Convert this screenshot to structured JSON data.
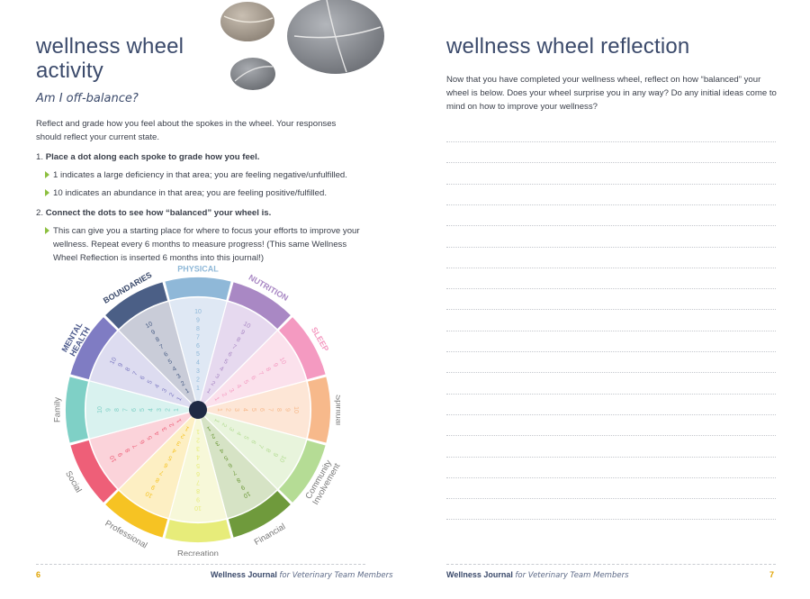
{
  "left_page": {
    "title": "wellness wheel activity",
    "subtitle": "Am I off-balance?",
    "intro": "Reflect and grade how you feel about the spokes in the wheel. Your responses should reflect your current state.",
    "step1": {
      "number": "1.",
      "heading": "Place a dot along each spoke to grade how you feel.",
      "bullets": [
        "1 indicates a large deficiency in that area; you are feeling negative/unfulfilled.",
        "10 indicates an abundance in that area; you are feeling positive/fulfilled."
      ]
    },
    "step2": {
      "number": "2.",
      "heading": "Connect the dots to see how “balanced” your wheel is.",
      "bullets": [
        "This can give you a starting place for where to focus your efforts to improve your wellness. Repeat every 6 months to measure progress! (This same Wellness Wheel Reflection is inserted 6 months into this journal!)"
      ]
    },
    "page_number": "6"
  },
  "wheel": {
    "segments": [
      {
        "label": "PHYSICAL",
        "color": "#8fb8d8",
        "light": "#dfe8f4",
        "text": "#8fb8d8"
      },
      {
        "label": "NUTRITION",
        "color": "#a988c4",
        "light": "#e6d9ef",
        "text": "#a988c4"
      },
      {
        "label": "SLEEP",
        "color": "#f49ac1",
        "light": "#fbe1ec",
        "text": "#f49ac1"
      },
      {
        "label": "Spiritual",
        "color": "#f7b98b",
        "light": "#fde6d6",
        "text": "#777777"
      },
      {
        "label": "Community Involvement",
        "color": "#b5dc95",
        "light": "#e8f4dc",
        "text": "#777777"
      },
      {
        "label": "Financial",
        "color": "#6f9a3c",
        "light": "#d6e3c5",
        "text": "#777777"
      },
      {
        "label": "Recreation",
        "color": "#e7ec7a",
        "light": "#f7f8d9",
        "text": "#777777"
      },
      {
        "label": "Professional",
        "color": "#f6c323",
        "light": "#fdefc3",
        "text": "#777777"
      },
      {
        "label": "Social",
        "color": "#ee5f78",
        "light": "#fbd3da",
        "text": "#777777"
      },
      {
        "label": "Family",
        "color": "#7fd0c6",
        "light": "#d9f2ef",
        "text": "#777777"
      },
      {
        "label": "MENTAL HEALTH",
        "color": "#7f7cc3",
        "light": "#dddcf0",
        "text": "#4d5a8c"
      },
      {
        "label": "BOUNDARIES",
        "color": "#4b5f86",
        "light": "#c9ccd8",
        "text": "#3b4a6b"
      }
    ],
    "scale": [
      "1",
      "2",
      "3",
      "4",
      "5",
      "6",
      "7",
      "8",
      "9",
      "10"
    ]
  },
  "right_page": {
    "title": "wellness wheel reflection",
    "prompt": "Now that you have completed your wellness wheel, reflect on how “balanced” your wheel is below. Does your wheel surprise you in any way? Do any initial ideas come to mind on how to improve your wellness?",
    "page_number": "7"
  },
  "footer": {
    "journal": "Wellness Journal",
    "for_text": "for Veterinary Team Members"
  }
}
